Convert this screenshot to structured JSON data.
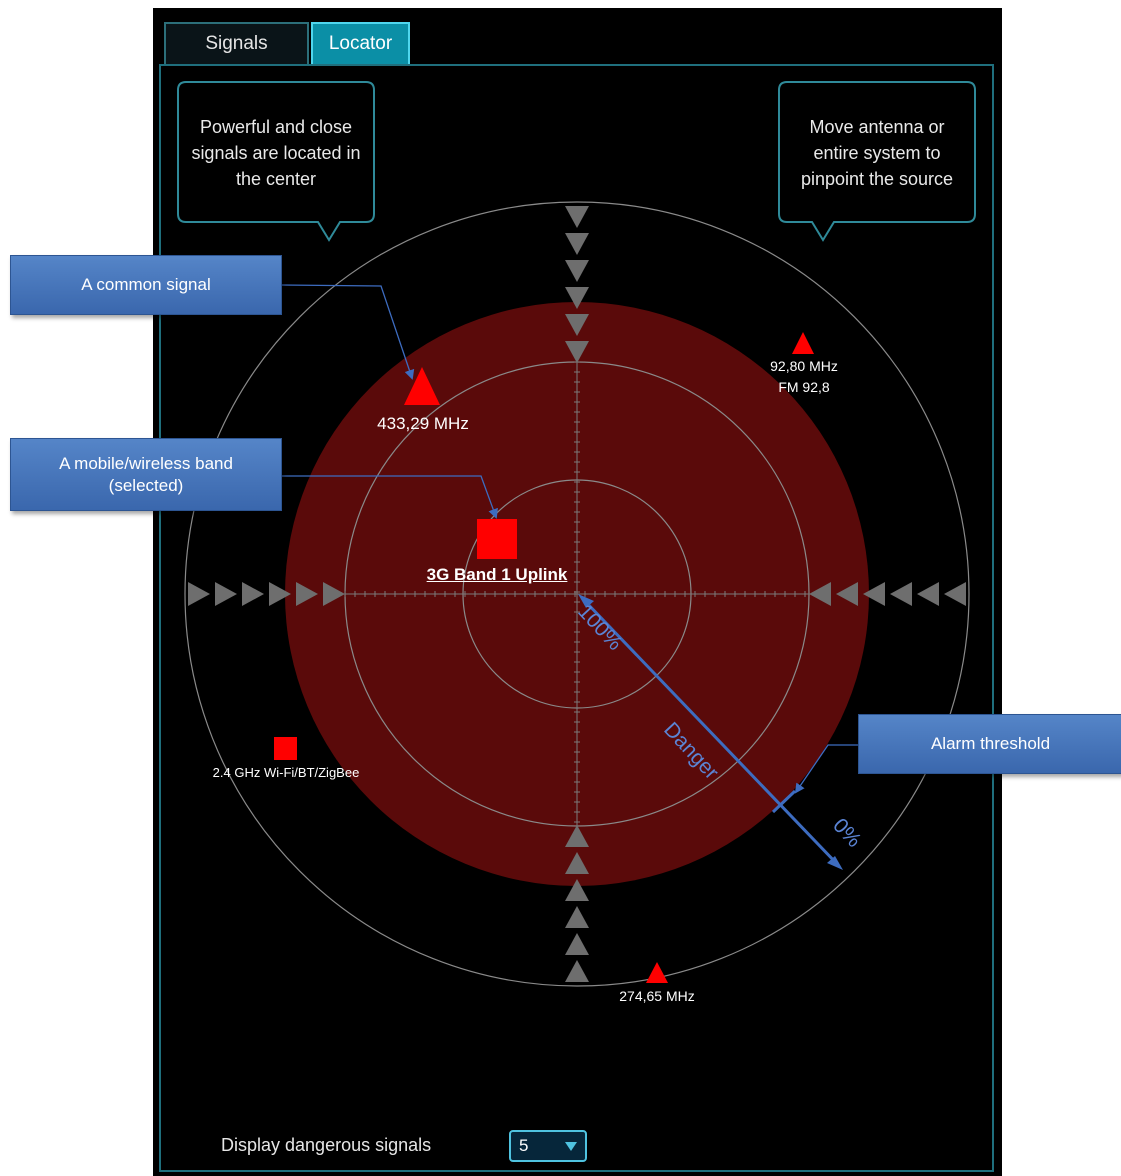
{
  "tabs": [
    {
      "label": "Signals",
      "active": false
    },
    {
      "label": "Locator",
      "active": true
    }
  ],
  "tooltips": {
    "left": "Powerful and close signals are located in the center",
    "right": "Move antenna or entire system to pinpoint the source"
  },
  "signals": [
    {
      "label": "433,29 MHz",
      "shape": "triangle"
    },
    {
      "label": "92,80 MHz",
      "sublabel": "FM 92,8",
      "shape": "triangle"
    },
    {
      "label": "3G Band 1 Uplink",
      "shape": "square",
      "selected": true
    },
    {
      "label": "2.4 GHz Wi-Fi/BT/ZigBee",
      "shape": "square"
    },
    {
      "label": "274,65 MHz",
      "shape": "triangle"
    }
  ],
  "annotations": {
    "common_signal": "A common signal",
    "mobile_band": "A mobile/wireless band (selected)",
    "alarm_threshold": "Alarm threshold",
    "pct_100": "100%",
    "danger": "Danger",
    "pct_0": "0%"
  },
  "footer": {
    "display_label": "Display dangerous signals",
    "count_value": "5"
  },
  "colors": {
    "accent": "#0b8fa6",
    "danger_zone": "#5a0a0a",
    "signal": "#ff0000",
    "callout": "#4a78bd"
  }
}
